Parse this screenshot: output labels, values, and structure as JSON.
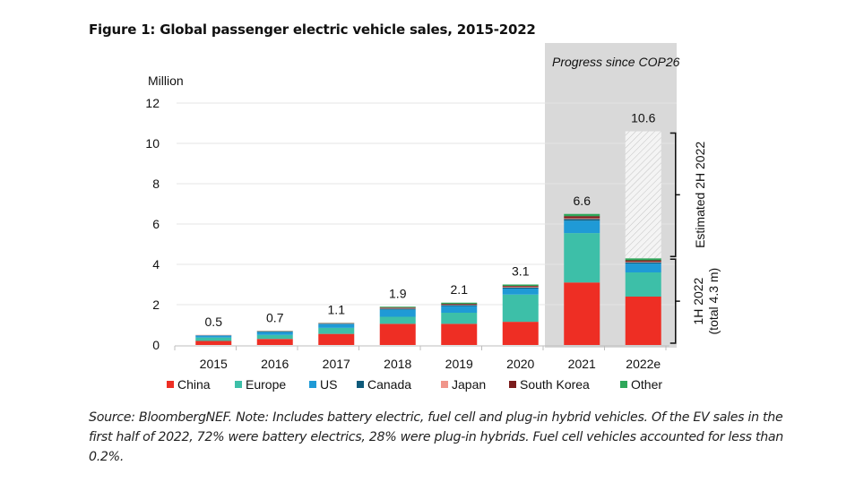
{
  "figure_title": "Figure 1: Global passenger electric vehicle sales, 2015-2022",
  "footnote": "Source: BloombergNEF. Note: Includes battery electric, fuel cell and plug-in hybrid vehicles. Of the EV sales in the first half of 2022, 72% were battery electrics, 28% were plug-in hybrids. Fuel cell vehicles accounted for less than 0.2%.",
  "chart_data": {
    "type": "bar",
    "stacked": true,
    "title": "Figure 1: Global passenger electric vehicle sales, 2015-2022",
    "ylabel": "Million",
    "xlabel": "",
    "ylim": [
      0,
      12
    ],
    "yticks": [
      0,
      2,
      4,
      6,
      8,
      10,
      12
    ],
    "grid": true,
    "categories": [
      "2015",
      "2016",
      "2017",
      "2018",
      "2019",
      "2020",
      "2021",
      "2022e"
    ],
    "totals_labels": [
      "0.5",
      "0.7",
      "1.1",
      "1.9",
      "2.1",
      "3.1",
      "6.6",
      "10.6"
    ],
    "series": [
      {
        "name": "China",
        "color": "#ee2e24",
        "values": [
          0.2,
          0.3,
          0.55,
          1.05,
          1.05,
          1.15,
          3.1,
          2.4
        ]
      },
      {
        "name": "Europe",
        "color": "#3dbfa8",
        "values": [
          0.17,
          0.2,
          0.3,
          0.35,
          0.55,
          1.35,
          2.45,
          1.2
        ]
      },
      {
        "name": "US",
        "color": "#1f9ad6",
        "values": [
          0.1,
          0.15,
          0.19,
          0.36,
          0.33,
          0.3,
          0.62,
          0.44
        ]
      },
      {
        "name": "Canada",
        "color": "#0e5a7a",
        "values": [
          0.01,
          0.02,
          0.02,
          0.04,
          0.05,
          0.05,
          0.08,
          0.06
        ]
      },
      {
        "name": "Japan",
        "color": "#f0958a",
        "values": [
          0.02,
          0.01,
          0.02,
          0.03,
          0.02,
          0.03,
          0.04,
          0.03
        ]
      },
      {
        "name": "South Korea",
        "color": "#7b1c1c",
        "values": [
          0.0,
          0.01,
          0.01,
          0.03,
          0.04,
          0.05,
          0.1,
          0.07
        ]
      },
      {
        "name": "Other",
        "color": "#2ea85a",
        "values": [
          0.0,
          0.01,
          0.01,
          0.04,
          0.06,
          0.07,
          0.11,
          0.1
        ]
      }
    ],
    "estimated_2h_2022": 6.3,
    "annotations": {
      "shaded_region_label": "Progress since COP26",
      "shaded_region_categories": [
        "2021",
        "2022e"
      ],
      "bracket_upper_label": "Estimated 2H 2022",
      "bracket_lower_label_line1": "1H 2022",
      "bracket_lower_label_line2": "(total 4.3 m)",
      "h1_2022_total": 4.3
    },
    "legend_position": "bottom"
  }
}
